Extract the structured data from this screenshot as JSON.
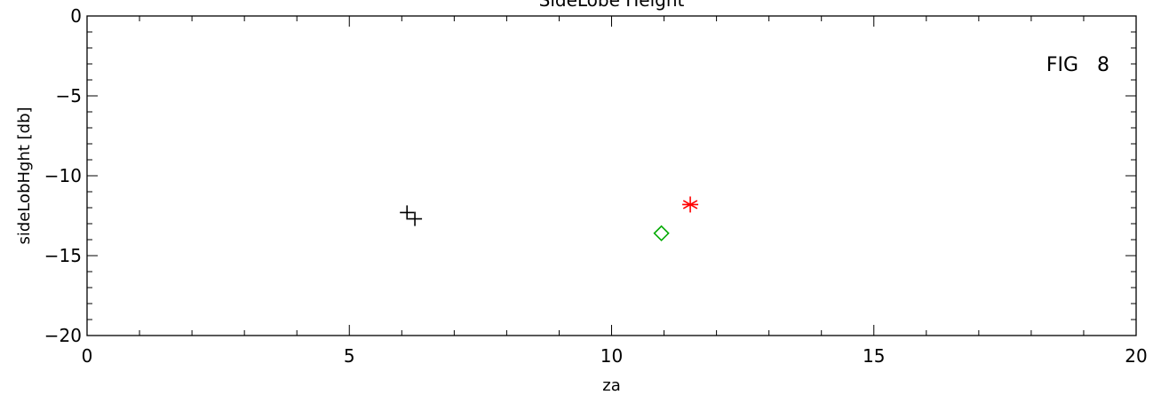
{
  "chart_data": {
    "type": "scatter",
    "title": "SideLobe Height",
    "xlabel": "za",
    "ylabel": "sideLobHght [db]",
    "xlim": [
      0,
      20
    ],
    "ylim": [
      -20,
      0
    ],
    "x_ticks": [
      0,
      5,
      10,
      15,
      20
    ],
    "y_ticks": [
      0,
      -5,
      -10,
      -15,
      -20
    ],
    "x_tick_labels": [
      "0",
      "5",
      "10",
      "15",
      "20"
    ],
    "y_tick_labels": [
      "0",
      "−5",
      "−10",
      "−15",
      "−20"
    ],
    "x_minor_step": 1,
    "y_minor_step": 1,
    "grid": false,
    "annotation": "FIG   8",
    "series": [
      {
        "marker": "plus",
        "color": "#000000",
        "points": [
          [
            6.1,
            -12.3
          ],
          [
            6.25,
            -12.7
          ]
        ]
      },
      {
        "marker": "diamond",
        "color": "#00aa00",
        "points": [
          [
            10.95,
            -13.6
          ]
        ]
      },
      {
        "marker": "asterisk",
        "color": "#ff0000",
        "points": [
          [
            11.5,
            -11.8
          ]
        ]
      }
    ]
  }
}
